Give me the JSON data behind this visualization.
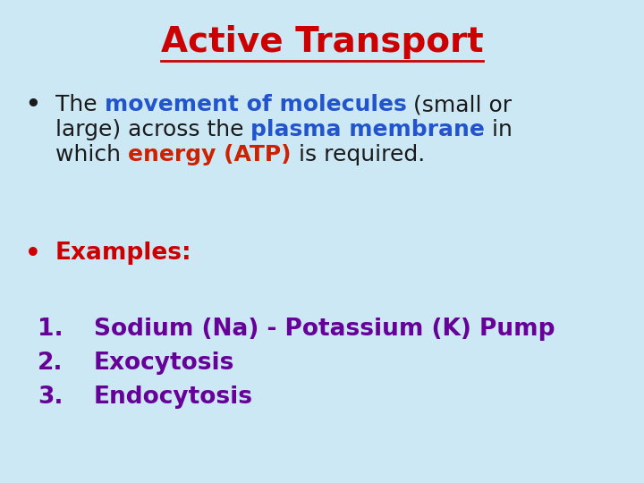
{
  "background_color": "#cce8f4",
  "title": "Active Transport",
  "title_color": "#cc0000",
  "title_fontsize": 28,
  "bullet_color": "#1a1a1a",
  "blue_color": "#2255cc",
  "red_color": "#cc2200",
  "examples_color": "#cc0000",
  "numbered_color": "#660099",
  "body_fontsize": 18,
  "small_fontsize": 17,
  "font_family": "DejaVu Sans",
  "line1": [
    [
      "The ",
      "#1a1a1a",
      false
    ],
    [
      "movement of molecules",
      "#2255cc",
      true
    ],
    [
      " (small or",
      "#1a1a1a",
      false
    ]
  ],
  "line2": [
    [
      "large) across the ",
      "#1a1a1a",
      false
    ],
    [
      "plasma membrane",
      "#2255cc",
      true
    ],
    [
      " in",
      "#1a1a1a",
      false
    ]
  ],
  "line3": [
    [
      "which ",
      "#1a1a1a",
      false
    ],
    [
      "energy (ATP)",
      "#cc2200",
      true
    ],
    [
      " is required.",
      "#1a1a1a",
      false
    ]
  ],
  "examples_text": "Examples:",
  "numbered_items": [
    "Sodium (Na) - Potassium (K) Pump",
    "Exocytosis",
    "Endocytosis"
  ]
}
